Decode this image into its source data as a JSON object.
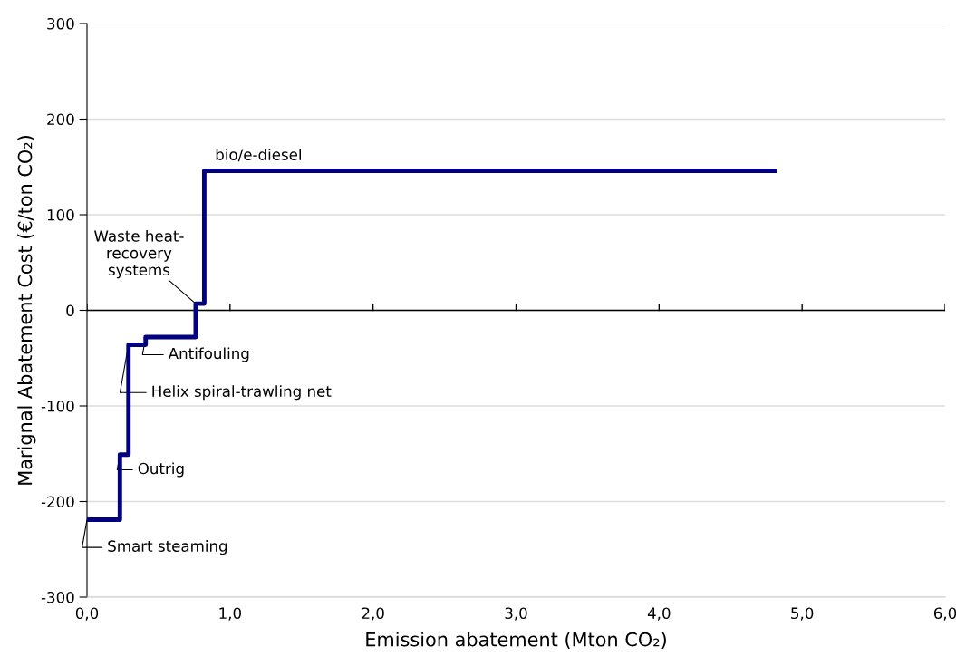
{
  "chart_data": {
    "type": "step",
    "xlabel": "Emission abatement (Mton CO₂)",
    "ylabel": "Marignal Abatement Cost (€/ton CO₂)",
    "x": [
      0,
      0.23,
      0.29,
      0.41,
      0.76,
      0.82,
      4.81
    ],
    "series": [
      {
        "color": "#000080",
        "values": [
          -219,
          -151,
          -36,
          -28,
          7,
          146,
          146
        ]
      }
    ],
    "xlim": [
      0,
      6
    ],
    "ylim": [
      -300,
      300
    ],
    "xticks": [
      {
        "value": 0,
        "label": "0,0"
      },
      {
        "value": 1,
        "label": "1,0"
      },
      {
        "value": 2,
        "label": "2,0"
      },
      {
        "value": 3,
        "label": "3,0"
      },
      {
        "value": 4,
        "label": "4,0"
      },
      {
        "value": 5,
        "label": "5,0"
      },
      {
        "value": 6,
        "label": "6,0"
      }
    ],
    "yticks": [
      -300,
      -200,
      -100,
      0,
      100,
      200,
      300
    ],
    "grid": "y",
    "ref_lines": [
      {
        "axis": "y",
        "value": 0,
        "color": "#000000"
      }
    ],
    "annotations": [
      {
        "text": "Smart steaming",
        "x": 0,
        "y": -219
      },
      {
        "text": "Outrig",
        "x": 0.23,
        "y": -151
      },
      {
        "text": "Helix spiral-trawling net",
        "x": 0.29,
        "y": -36
      },
      {
        "text": "Antifouling",
        "x": 0.41,
        "y": -28
      },
      {
        "text": "Waste heat-\nrecovery\nsystems",
        "x": 0.76,
        "y": 7
      },
      {
        "text": "bio/e-diesel",
        "x": 1.2,
        "y": 146
      }
    ]
  }
}
